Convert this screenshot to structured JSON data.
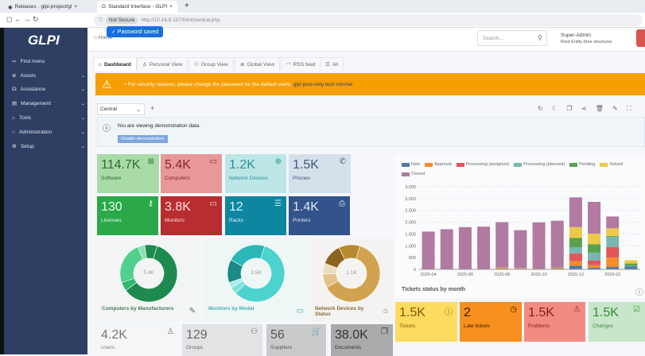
{
  "browser": {
    "tabs": [
      {
        "label": "Releases · glpi-project/gl",
        "active": false
      },
      {
        "label": "Standard Interface - GLPI",
        "active": true
      }
    ],
    "new_tab": "+",
    "security": "Not Secure",
    "url": "http://10.16.8.107/front/central.php",
    "toast": "✓ Password saved"
  },
  "sidebar": {
    "logo": "GLPI",
    "items": [
      {
        "label": "Find menu",
        "icon": "⇨"
      },
      {
        "label": "Assets",
        "icon": "⊛"
      },
      {
        "label": "Assistance",
        "icon": "☊"
      },
      {
        "label": "Management",
        "icon": "▤"
      },
      {
        "label": "Tools",
        "icon": "⌂"
      },
      {
        "label": "Administration",
        "icon": "○"
      },
      {
        "label": "Setup",
        "icon": "⚙"
      }
    ]
  },
  "header": {
    "breadcrumb": "Home",
    "search_placeholder": "Search...",
    "user": "Super-Admin",
    "entity": "Root Entity (tree structure)"
  },
  "tabs": [
    {
      "label": "Dashboard",
      "icon": "⌂"
    },
    {
      "label": "Personal View",
      "icon": "♙"
    },
    {
      "label": "Group View",
      "icon": "⚇"
    },
    {
      "label": "Global View",
      "icon": "⊕"
    },
    {
      "label": "RSS feed",
      "icon": "◠"
    },
    {
      "label": "All",
      "icon": "☰"
    }
  ],
  "warning": {
    "text": "• For security reasons, please change the password for the default users: ",
    "users": "glpi post-only tech normal"
  },
  "dashboard": {
    "selected": "Central",
    "add": "+",
    "demo_text": "You are viewing demonstration data.",
    "demo_button": "Disable demonstration"
  },
  "cards": [
    {
      "value": "114.7K",
      "label": "Software",
      "icon": "apps-icon",
      "bg": "#a8dba8",
      "fg": "#2f6b33"
    },
    {
      "value": "5.4K",
      "label": "Computers",
      "icon": "laptop-icon",
      "bg": "#e89898",
      "fg": "#8a2424"
    },
    {
      "value": "1.2K",
      "label": "Network Devices",
      "icon": "network-icon",
      "bg": "#bde7e7",
      "fg": "#2b8f93"
    },
    {
      "value": "1.5K",
      "label": "Phones",
      "icon": "phone-icon",
      "bg": "#d6e0ea",
      "fg": "#3f5878"
    },
    {
      "value": "130",
      "label": "Licenses",
      "icon": "key-icon",
      "bg": "#2aa84a",
      "fg": "#eaffea"
    },
    {
      "value": "3.8K",
      "label": "Monitors",
      "icon": "monitor-icon",
      "bg": "#b82d2f",
      "fg": "#ffdede"
    },
    {
      "value": "12",
      "label": "Racks",
      "icon": "rack-icon",
      "bg": "#0f86a0",
      "fg": "#d8f4fb"
    },
    {
      "value": "1.4K",
      "label": "Printers",
      "icon": "printer-icon",
      "bg": "#33548a",
      "fg": "#dfe8f7"
    }
  ],
  "donuts": [
    {
      "title": "Computers by Manufacturers",
      "center": "5.4K",
      "slices": [
        60,
        5,
        24,
        4,
        7
      ],
      "colors": [
        "#1e8a4f",
        "#2eb872",
        "#50cf8d",
        "#8ee0b3",
        "#1e8a4f"
      ],
      "bg": "#f2f5f4",
      "title_color": "#4b7a5c",
      "icon": "edit-icon"
    },
    {
      "title": "Monitors by Model",
      "center": "3.5K",
      "slices": [
        58,
        4,
        3,
        13,
        22
      ],
      "colors": [
        "#4dd3cf",
        "#7fe0dc",
        "#a9ece9",
        "#1a8a88",
        "#2bb6b8"
      ],
      "bg": "#eff6f6",
      "title_color": "#3fb2b2",
      "icon": "monitor-icon"
    },
    {
      "title": "Network Devices by Status",
      "center": "1.1K",
      "slices": [
        62,
        8,
        6,
        12,
        12
      ],
      "colors": [
        "#d1a24f",
        "#e1c38b",
        "#ecdcbf",
        "#8a641f",
        "#b88a2e"
      ],
      "bg": "#f4f3f1",
      "title_color": "#8a6a3a",
      "icon": "tag-icon"
    }
  ],
  "bottom_cards": [
    {
      "value": "4.2K",
      "label": "Users",
      "icon": "user-icon",
      "bg": "#f5f6f8",
      "fg": "#777"
    },
    {
      "value": "129",
      "label": "Groups",
      "icon": "users-icon",
      "bg": "#e2e3e5",
      "fg": "#666"
    },
    {
      "value": "56",
      "label": "Suppliers",
      "icon": "cart-icon",
      "bg": "#c9cacc",
      "fg": "#555"
    },
    {
      "value": "38.0K",
      "label": "Documents",
      "icon": "documents-icon",
      "bg": "#a9aaac",
      "fg": "#333"
    }
  ],
  "ticket_cards": [
    {
      "value": "1.5K",
      "label": "Tickets",
      "icon": "alert-circle-icon",
      "bg": "#fddb61",
      "fg": "#7a5c00"
    },
    {
      "value": "2",
      "label": "Late tickets",
      "icon": "clock-icon",
      "bg": "#f7901e",
      "fg": "#3a2000"
    },
    {
      "value": "1.5K",
      "label": "Problems",
      "icon": "warning-icon",
      "bg": "#f28b82",
      "fg": "#8a1a1a"
    },
    {
      "value": "1.5K",
      "label": "Changes",
      "icon": "clipboard-check-icon",
      "bg": "#c8e6c9",
      "fg": "#3c8a3f"
    }
  ],
  "chart_data": {
    "type": "bar",
    "stacked": true,
    "title": "Tickets status by month",
    "legend": "top",
    "categories": [
      "2025-04",
      "2025-05",
      "2025-06",
      "2025-07",
      "2025-08",
      "2025-09",
      "2025-10",
      "2025-11",
      "2025-12",
      "2026-01",
      "2026-02",
      "2026-03"
    ],
    "tick_labels": [
      "2025-04",
      "2025-06",
      "2025-08",
      "2025-10",
      "2025-12",
      "2026-02"
    ],
    "ylim": [
      0,
      3500
    ],
    "yticks": [
      "0",
      "500",
      "1,000",
      "1,500",
      "2,000",
      "2,500",
      "3,000",
      "3,500"
    ],
    "grid": true,
    "series": [
      {
        "name": "New",
        "color": "#4e79a7",
        "values": [
          0,
          0,
          0,
          0,
          20,
          20,
          10,
          20,
          150,
          70,
          100,
          130
        ]
      },
      {
        "name": "Approval",
        "color": "#f28e2b",
        "values": [
          0,
          0,
          0,
          0,
          30,
          10,
          20,
          20,
          200,
          110,
          400,
          0
        ]
      },
      {
        "name": "Processing (assigned)",
        "color": "#e15759",
        "values": [
          0,
          0,
          0,
          0,
          10,
          0,
          0,
          10,
          330,
          200,
          450,
          0
        ]
      },
      {
        "name": "Processing (planned)",
        "color": "#76b7b2",
        "values": [
          0,
          0,
          0,
          0,
          0,
          10,
          0,
          0,
          250,
          330,
          430,
          20
        ]
      },
      {
        "name": "Pending",
        "color": "#59a14f",
        "values": [
          0,
          0,
          0,
          0,
          10,
          0,
          0,
          20,
          400,
          350,
          30,
          100
        ]
      },
      {
        "name": "Solved",
        "color": "#edc948",
        "values": [
          0,
          0,
          10,
          0,
          10,
          10,
          0,
          10,
          460,
          450,
          330,
          140
        ]
      },
      {
        "name": "Closed",
        "color": "#b07aa1",
        "values": [
          1600,
          1700,
          1780,
          1810,
          1920,
          1610,
          1960,
          1980,
          1260,
          1350,
          500,
          0
        ]
      }
    ]
  }
}
